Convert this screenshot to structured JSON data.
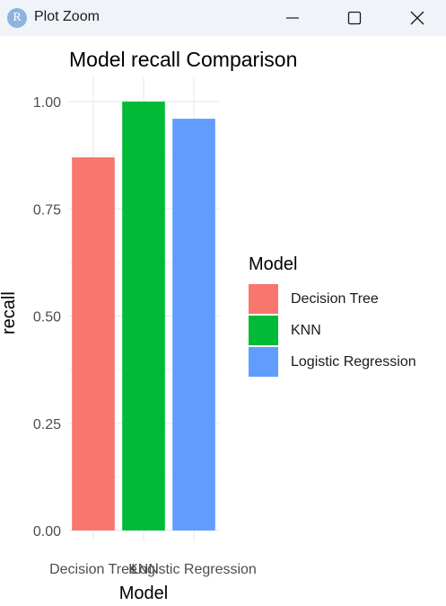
{
  "window": {
    "title": "Plot Zoom",
    "icon_letter": "R",
    "icon": "r-app-icon",
    "minimize_icon": "minimize-icon",
    "maximize_icon": "maximize-icon",
    "close_icon": "close-icon"
  },
  "chart_data": {
    "type": "bar",
    "title": "Model recall Comparison",
    "xlabel": "Model",
    "ylabel": "recall",
    "categories": [
      "Decision Tree",
      "KNN",
      "Logistic Regression"
    ],
    "values": [
      0.87,
      1.0,
      0.96
    ],
    "colors": [
      "#f8766d",
      "#00ba38",
      "#619cff"
    ],
    "ylim": [
      0,
      1.0
    ],
    "yticks": [
      0.0,
      0.25,
      0.5,
      0.75,
      1.0
    ],
    "ytick_labels": [
      "0.00",
      "0.25",
      "0.50",
      "0.75",
      "1.00"
    ],
    "grid": true,
    "legend": {
      "title": "Model",
      "position": "right",
      "entries": [
        "Decision Tree",
        "KNN",
        "Logistic Regression"
      ]
    }
  }
}
